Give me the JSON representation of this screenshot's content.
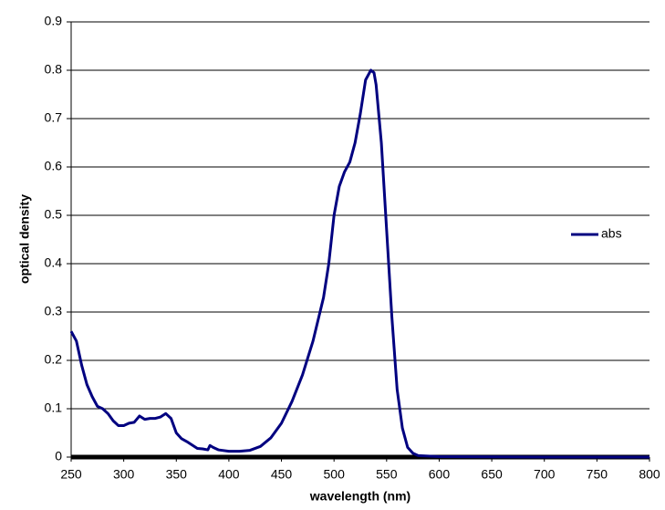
{
  "chart_data": {
    "type": "line",
    "x_label": "wavelength (nm)",
    "y_label": "optical density",
    "x": [
      250,
      255,
      260,
      265,
      270,
      275,
      280,
      285,
      290,
      295,
      300,
      305,
      310,
      315,
      320,
      325,
      330,
      335,
      340,
      345,
      350,
      355,
      360,
      365,
      370,
      375,
      380,
      382,
      385,
      390,
      400,
      410,
      420,
      430,
      440,
      450,
      460,
      470,
      480,
      490,
      495,
      500,
      505,
      510,
      515,
      520,
      525,
      530,
      535,
      538,
      540,
      545,
      550,
      555,
      560,
      565,
      570,
      575,
      580,
      600,
      700,
      800
    ],
    "series": [
      {
        "name": "abs",
        "color": "#000080",
        "values": [
          0.26,
          0.24,
          0.19,
          0.15,
          0.125,
          0.105,
          0.1,
          0.09,
          0.075,
          0.065,
          0.065,
          0.07,
          0.072,
          0.085,
          0.078,
          0.08,
          0.08,
          0.083,
          0.09,
          0.08,
          0.05,
          0.038,
          0.032,
          0.025,
          0.018,
          0.017,
          0.015,
          0.024,
          0.02,
          0.015,
          0.012,
          0.012,
          0.014,
          0.022,
          0.04,
          0.07,
          0.115,
          0.17,
          0.24,
          0.33,
          0.4,
          0.5,
          0.56,
          0.59,
          0.61,
          0.65,
          0.71,
          0.78,
          0.8,
          0.795,
          0.77,
          0.65,
          0.47,
          0.29,
          0.14,
          0.06,
          0.02,
          0.008,
          0.003,
          0.001,
          0,
          0
        ]
      }
    ],
    "xlim": [
      250,
      800
    ],
    "xticks": [
      250,
      300,
      350,
      400,
      450,
      500,
      550,
      600,
      650,
      700,
      750,
      800
    ],
    "ylim": [
      0,
      0.9
    ],
    "yticks": [
      0,
      0.1,
      0.2,
      0.3,
      0.4,
      0.5,
      0.6,
      0.7,
      0.8,
      0.9
    ],
    "grid": true,
    "legend": "right"
  }
}
